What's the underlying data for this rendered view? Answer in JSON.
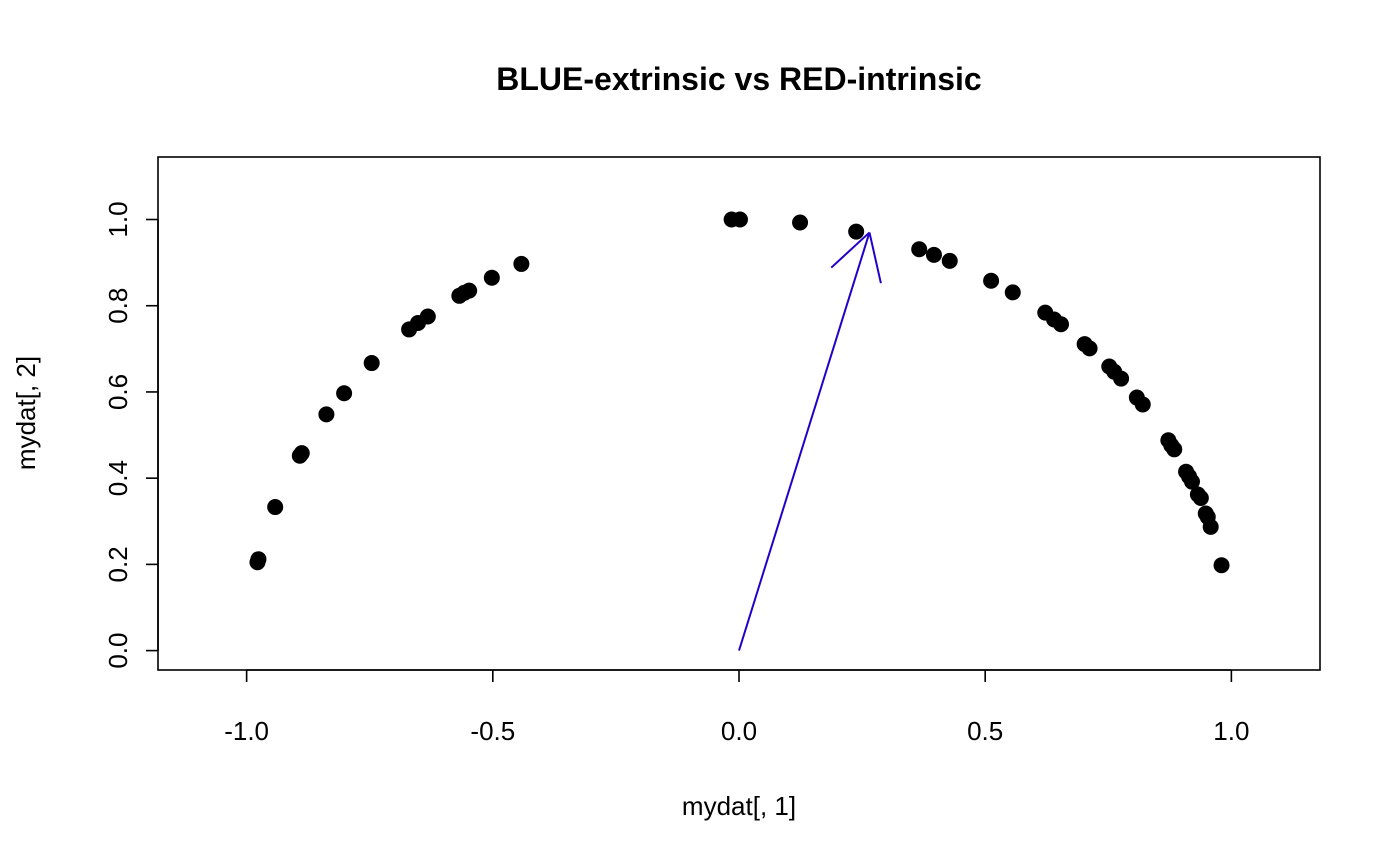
{
  "chart_data": {
    "type": "scatter",
    "title": "BLUE-extrinsic vs RED-intrinsic",
    "xlabel": "mydat[, 1]",
    "ylabel": "mydat[, 2]",
    "xlim": [
      -1.18,
      1.18
    ],
    "ylim": [
      -0.045,
      1.145
    ],
    "x_ticks": [
      -1.0,
      -0.5,
      0.0,
      0.5,
      1.0
    ],
    "x_tick_labels": [
      "-1.0",
      "-0.5",
      "0.0",
      "0.5",
      "1.0"
    ],
    "y_ticks": [
      0.0,
      0.2,
      0.4,
      0.6,
      0.8,
      1.0
    ],
    "y_tick_labels": [
      "0.0",
      "0.2",
      "0.4",
      "0.6",
      "0.8",
      "1.0"
    ],
    "grid": false,
    "point_color": "#000000",
    "points": [
      {
        "x": -0.978,
        "y": 0.205
      },
      {
        "x": -0.976,
        "y": 0.212
      },
      {
        "x": -0.942,
        "y": 0.333
      },
      {
        "x": -0.892,
        "y": 0.452
      },
      {
        "x": -0.888,
        "y": 0.458
      },
      {
        "x": -0.838,
        "y": 0.548
      },
      {
        "x": -0.802,
        "y": 0.597
      },
      {
        "x": -0.746,
        "y": 0.667
      },
      {
        "x": -0.67,
        "y": 0.745
      },
      {
        "x": -0.652,
        "y": 0.76
      },
      {
        "x": -0.632,
        "y": 0.775
      },
      {
        "x": -0.568,
        "y": 0.823
      },
      {
        "x": -0.558,
        "y": 0.83
      },
      {
        "x": -0.548,
        "y": 0.835
      },
      {
        "x": -0.502,
        "y": 0.865
      },
      {
        "x": -0.442,
        "y": 0.897
      },
      {
        "x": -0.015,
        "y": 1.0
      },
      {
        "x": 0.002,
        "y": 1.0
      },
      {
        "x": 0.124,
        "y": 0.993
      },
      {
        "x": 0.238,
        "y": 0.972
      },
      {
        "x": 0.366,
        "y": 0.931
      },
      {
        "x": 0.396,
        "y": 0.918
      },
      {
        "x": 0.428,
        "y": 0.904
      },
      {
        "x": 0.512,
        "y": 0.858
      },
      {
        "x": 0.556,
        "y": 0.831
      },
      {
        "x": 0.622,
        "y": 0.784
      },
      {
        "x": 0.64,
        "y": 0.768
      },
      {
        "x": 0.654,
        "y": 0.757
      },
      {
        "x": 0.702,
        "y": 0.711
      },
      {
        "x": 0.712,
        "y": 0.701
      },
      {
        "x": 0.752,
        "y": 0.659
      },
      {
        "x": 0.762,
        "y": 0.647
      },
      {
        "x": 0.776,
        "y": 0.631
      },
      {
        "x": 0.808,
        "y": 0.587
      },
      {
        "x": 0.82,
        "y": 0.571
      },
      {
        "x": 0.872,
        "y": 0.488
      },
      {
        "x": 0.878,
        "y": 0.476
      },
      {
        "x": 0.884,
        "y": 0.467
      },
      {
        "x": 0.908,
        "y": 0.415
      },
      {
        "x": 0.914,
        "y": 0.404
      },
      {
        "x": 0.92,
        "y": 0.392
      },
      {
        "x": 0.932,
        "y": 0.362
      },
      {
        "x": 0.938,
        "y": 0.354
      },
      {
        "x": 0.948,
        "y": 0.318
      },
      {
        "x": 0.952,
        "y": 0.31
      },
      {
        "x": 0.958,
        "y": 0.287
      },
      {
        "x": 0.98,
        "y": 0.198
      }
    ],
    "arrow": {
      "color": "#2200cc",
      "from": {
        "x": 0.0,
        "y": 0.0
      },
      "to": {
        "x": 0.265,
        "y": 0.97
      }
    }
  }
}
